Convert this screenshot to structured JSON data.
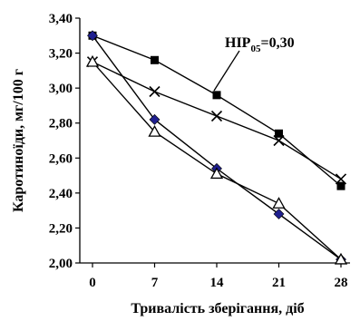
{
  "chart_data": {
    "type": "line",
    "title": "",
    "xlabel": "Тривалість зберігання, діб",
    "ylabel": "Каротиноїди, мг/100 г",
    "x": [
      0,
      7,
      14,
      21,
      28
    ],
    "x_tick_labels": [
      "0",
      "7",
      "14",
      "21",
      "28"
    ],
    "ylim": [
      2.0,
      3.4
    ],
    "y_tick_labels": [
      "2,00",
      "2,20",
      "2,40",
      "2,60",
      "2,80",
      "3,00",
      "3,20",
      "3,40"
    ],
    "grid": false,
    "legend": "none",
    "annotation": {
      "text_main": "НІР",
      "text_sub": "05",
      "text_value": "=0,30"
    },
    "series": [
      {
        "marker": "square",
        "color": "#000000",
        "values": [
          3.3,
          3.16,
          2.96,
          2.74,
          2.44
        ]
      },
      {
        "marker": "x",
        "color": "#000000",
        "values": [
          3.15,
          2.98,
          2.84,
          2.7,
          2.48
        ]
      },
      {
        "marker": "diamond",
        "color": "#1f1f8f",
        "values": [
          3.3,
          2.82,
          2.54,
          2.28,
          2.02
        ]
      },
      {
        "marker": "triangle",
        "color": "#000000",
        "values": [
          3.15,
          2.75,
          2.51,
          2.34,
          2.02
        ]
      }
    ]
  }
}
